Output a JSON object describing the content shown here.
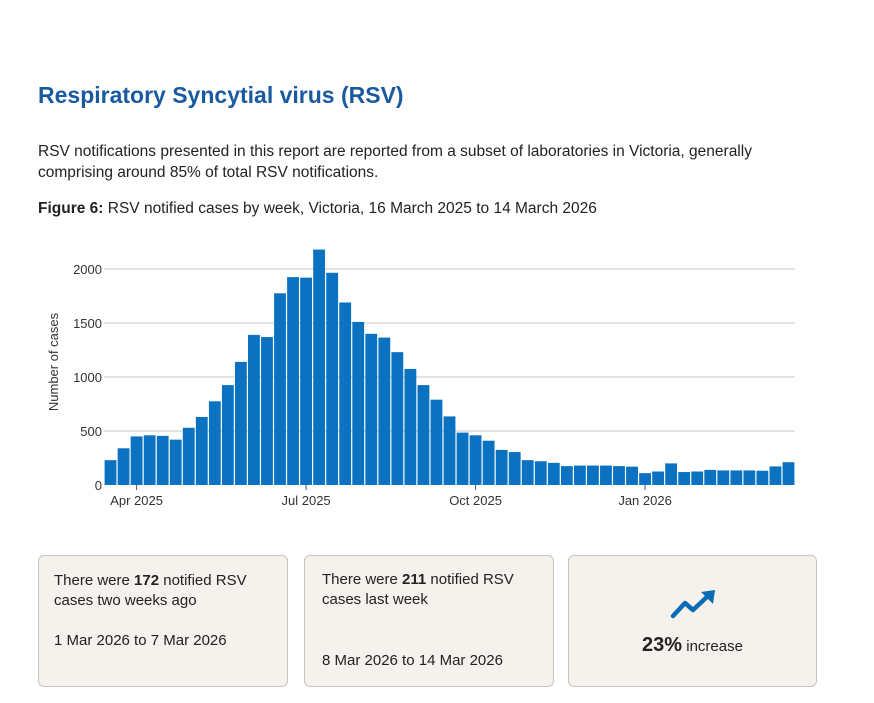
{
  "heading": "Respiratory Syncytial virus (RSV)",
  "intro": "RSV notifications presented in this report are reported from a subset of laboratories in Victoria, generally comprising around 85% of total RSV notifications.",
  "figure": {
    "label": "Figure 6:",
    "caption": "RSV notified cases by week, Victoria, 16 March 2025 to 14 March 2026"
  },
  "colors": {
    "bar": "#0a72c1",
    "title": "#1a5aa0",
    "card_bg": "#f5f1ec"
  },
  "chart_data": {
    "type": "bar",
    "title": "RSV notified cases by week, Victoria, 16 March 2025 to 14 March 2026",
    "xlabel": "",
    "ylabel": "Number of cases",
    "ylim": [
      0,
      2200
    ],
    "yticks": [
      0,
      500,
      1000,
      1500,
      2000
    ],
    "xtick_labels": [
      {
        "label": "Apr 2025",
        "index": 2.5
      },
      {
        "label": "Jul 2025",
        "index": 15.5
      },
      {
        "label": "Oct 2025",
        "index": 28.5
      },
      {
        "label": "Jan 2026",
        "index": 41.5
      }
    ],
    "grid": true,
    "series": [
      {
        "name": "RSV notified cases",
        "values": [
          230,
          340,
          450,
          460,
          455,
          420,
          530,
          630,
          775,
          925,
          1140,
          1390,
          1370,
          1775,
          1925,
          1920,
          2180,
          1965,
          1690,
          1510,
          1400,
          1365,
          1230,
          1075,
          925,
          790,
          635,
          485,
          460,
          410,
          325,
          305,
          230,
          220,
          205,
          175,
          180,
          180,
          180,
          175,
          170,
          110,
          125,
          200,
          120,
          125,
          140,
          135,
          135,
          135,
          132,
          172,
          211
        ]
      }
    ]
  },
  "cards": [
    {
      "pre": "There were ",
      "count": "172",
      "post": " notified RSV cases two weeks ago",
      "date": "1 Mar 2026 to 7 Mar 2026"
    },
    {
      "pre": "There were ",
      "count": "211",
      "post": " notified RSV cases last week",
      "date": "8 Mar 2026 to 14 Mar 2026"
    },
    {
      "pct": "23%",
      "label": "increase",
      "icon": "trend-up-icon"
    }
  ]
}
